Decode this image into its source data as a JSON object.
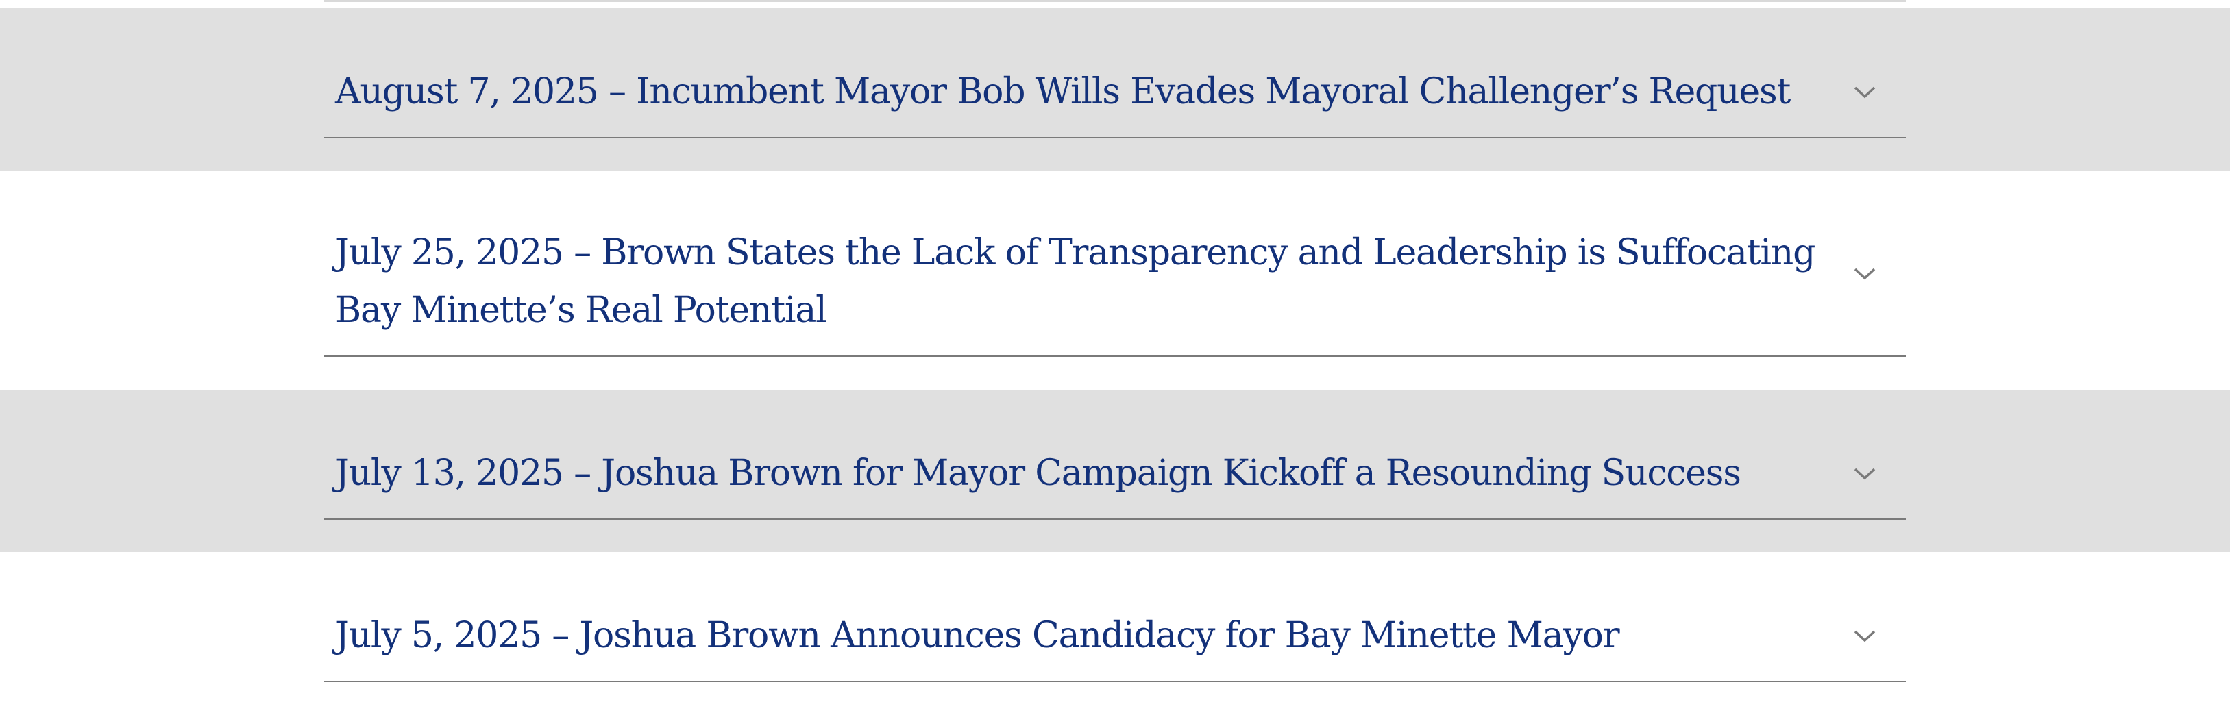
{
  "accordion": {
    "items": [
      {
        "title": "August 7, 2025 – Incumbent Mayor Bob Wills Evades Mayoral Challenger’s Request",
        "expanded": false,
        "icon": "chevron-down-icon"
      },
      {
        "title": "July 25, 2025 – Brown States the Lack of Transparency and Leadership is Suffocating Bay Minette’s Real Potential",
        "expanded": false,
        "icon": "chevron-down-icon"
      },
      {
        "title": "July 13, 2025 – Joshua Brown for Mayor Campaign Kickoff a Resounding Success",
        "expanded": false,
        "icon": "chevron-down-icon"
      },
      {
        "title": "July 5, 2025 – Joshua Brown Announces Candidacy for Bay Minette Mayor",
        "expanded": false,
        "icon": "chevron-down-icon"
      }
    ]
  },
  "colors": {
    "title_text": "#13317a",
    "alternate_row_bg": "#e0e0e0",
    "divider": "#7a7a7a",
    "chevron": "#7a7a7a"
  }
}
